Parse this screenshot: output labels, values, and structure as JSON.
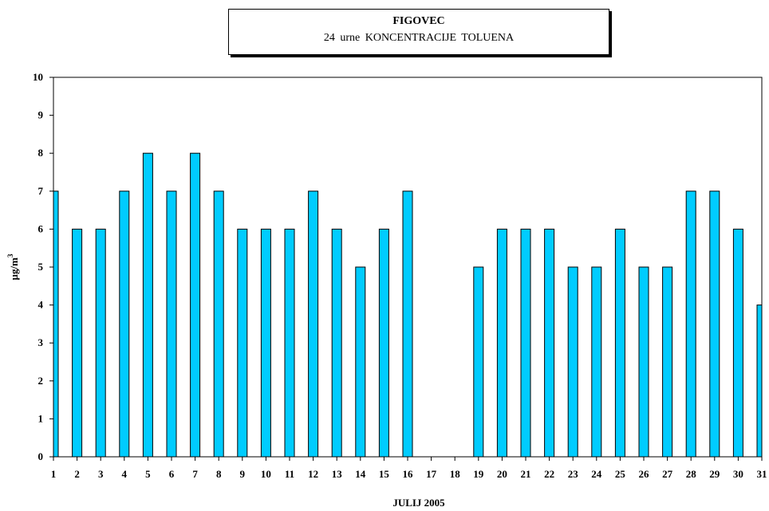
{
  "title": "FIGOVEC",
  "subtitle": "24 urne KONCENTRACIJE TOLUENA",
  "chart_data": {
    "type": "bar",
    "categories": [
      "1",
      "2",
      "3",
      "4",
      "5",
      "6",
      "7",
      "8",
      "9",
      "10",
      "11",
      "12",
      "13",
      "14",
      "15",
      "16",
      "17",
      "18",
      "19",
      "20",
      "21",
      "22",
      "23",
      "24",
      "25",
      "26",
      "27",
      "28",
      "29",
      "30",
      "31"
    ],
    "values": [
      7,
      6,
      6,
      7,
      8,
      7,
      8,
      7,
      6,
      6,
      6,
      7,
      6,
      5,
      6,
      7,
      null,
      null,
      5,
      6,
      6,
      6,
      5,
      5,
      6,
      5,
      5,
      7,
      7,
      6,
      4
    ],
    "xlabel": "JULIJ  2005",
    "ylabel": "µg/m",
    "ylabel_superscript": "3",
    "ylim": [
      0,
      10
    ],
    "yticks": [
      0,
      1,
      2,
      3,
      4,
      5,
      6,
      7,
      8,
      9,
      10
    ],
    "grid": false,
    "bar_color": "#00CCFF"
  }
}
